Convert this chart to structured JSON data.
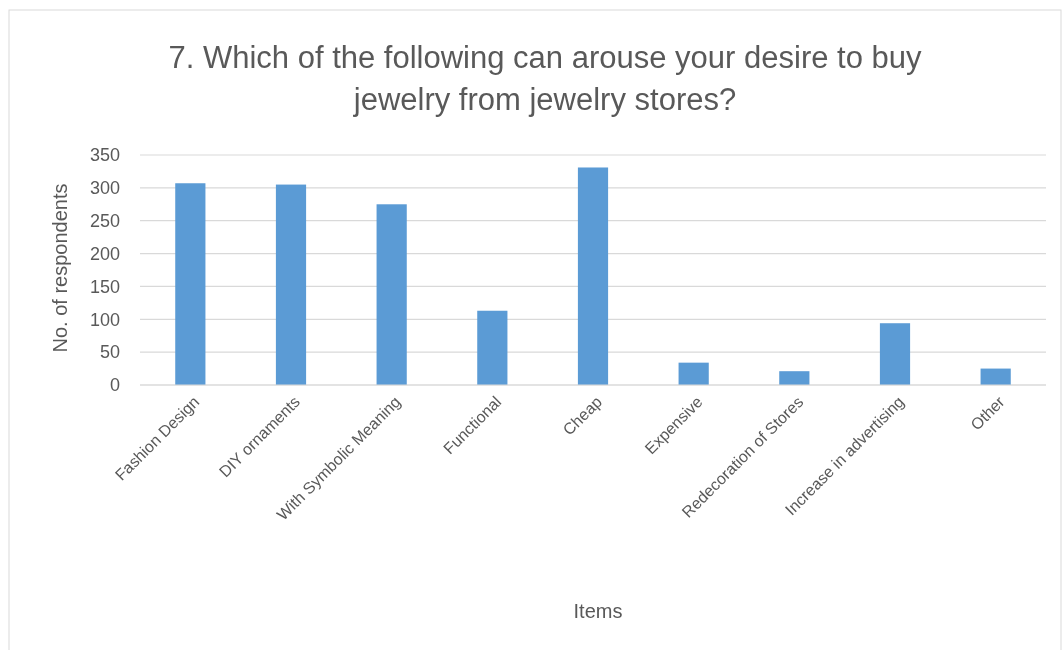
{
  "chart_data": {
    "type": "bar",
    "title": "7. Which of the following can arouse your desire to buy jewelry from jewelry stores?",
    "xlabel": "Items",
    "ylabel": "No. of respondents",
    "categories": [
      "Fashion Design",
      "DIY ornaments",
      "With Symbolic Meaning",
      "Functional",
      "Cheap",
      "Expensive",
      "Redecoration of Stores",
      "Increase in advertising",
      "Other"
    ],
    "values": [
      307,
      305,
      275,
      113,
      331,
      34,
      21,
      94,
      25
    ],
    "color": "#5b9bd5",
    "ylim": [
      0,
      350
    ],
    "yticks": [
      0,
      50,
      100,
      150,
      200,
      250,
      300,
      350
    ],
    "grid": "y"
  }
}
